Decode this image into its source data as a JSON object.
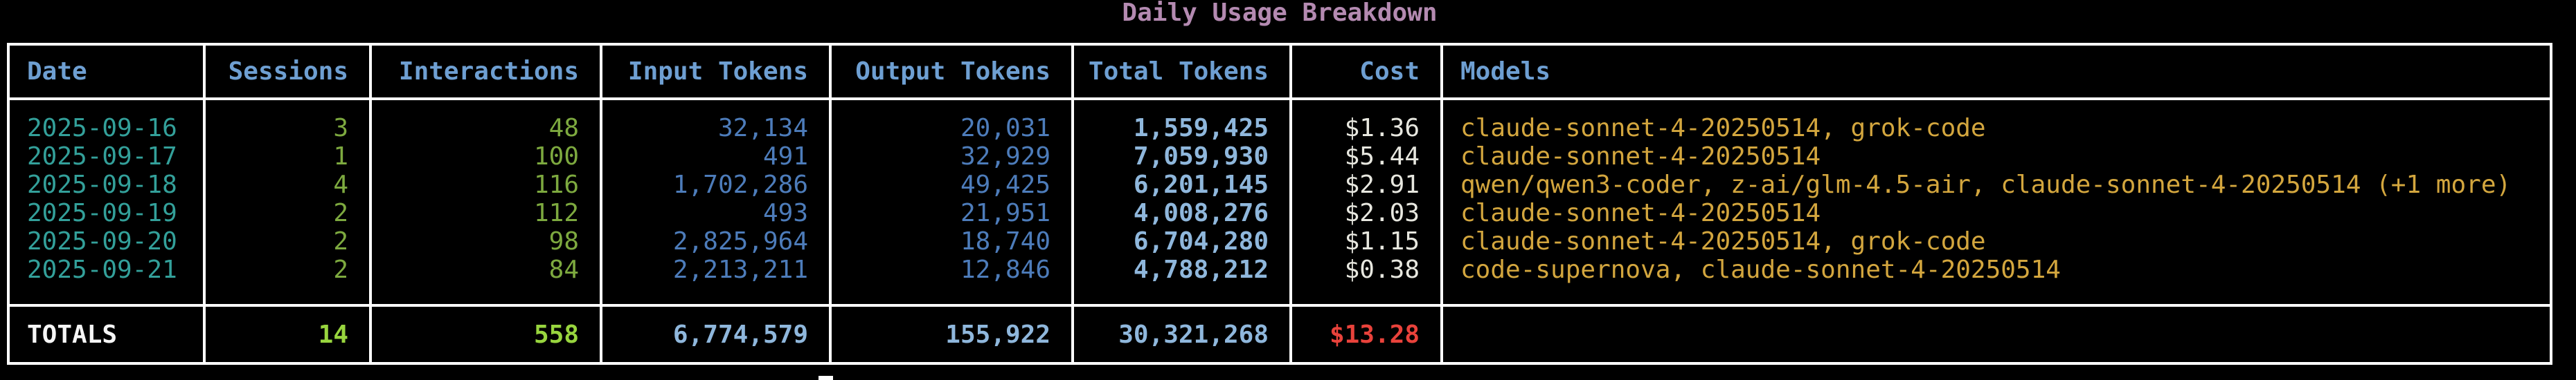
{
  "title": "Daily Usage Breakdown",
  "colors": {
    "background": "#000000",
    "border": "#ffffff",
    "title": "#b48ab1",
    "header": "#6e9fd2",
    "date": "#33a09a",
    "count_green": "#7da93f",
    "totals_green": "#98d53e",
    "token_blue": "#4d7cba",
    "total_token_blue": "#8fb7dc",
    "cost_white": "#e7e7df",
    "models_gold": "#d3a63e",
    "total_cost_red": "#e9423b",
    "totals_label": "#f5f5f5",
    "cursor": "#ffffff"
  },
  "table": {
    "columns": [
      {
        "label": "Date",
        "align": "left"
      },
      {
        "label": "Sessions",
        "align": "right"
      },
      {
        "label": "Interactions",
        "align": "right"
      },
      {
        "label": "Input Tokens",
        "align": "right"
      },
      {
        "label": "Output Tokens",
        "align": "right"
      },
      {
        "label": "Total Tokens",
        "align": "right"
      },
      {
        "label": "Cost",
        "align": "right"
      },
      {
        "label": "Models",
        "align": "left"
      }
    ],
    "rows": [
      {
        "date": "2025-09-16",
        "sessions": "3",
        "interactions": "48",
        "input_tokens": "32,134",
        "output_tokens": "20,031",
        "total_tokens": "1,559,425",
        "cost": "$1.36",
        "models": "claude-sonnet-4-20250514, grok-code"
      },
      {
        "date": "2025-09-17",
        "sessions": "1",
        "interactions": "100",
        "input_tokens": "491",
        "output_tokens": "32,929",
        "total_tokens": "7,059,930",
        "cost": "$5.44",
        "models": "claude-sonnet-4-20250514"
      },
      {
        "date": "2025-09-18",
        "sessions": "4",
        "interactions": "116",
        "input_tokens": "1,702,286",
        "output_tokens": "49,425",
        "total_tokens": "6,201,145",
        "cost": "$2.91",
        "models": "qwen/qwen3-coder, z-ai/glm-4.5-air, claude-sonnet-4-20250514 (+1 more)"
      },
      {
        "date": "2025-09-19",
        "sessions": "2",
        "interactions": "112",
        "input_tokens": "493",
        "output_tokens": "21,951",
        "total_tokens": "4,008,276",
        "cost": "$2.03",
        "models": "claude-sonnet-4-20250514"
      },
      {
        "date": "2025-09-20",
        "sessions": "2",
        "interactions": "98",
        "input_tokens": "2,825,964",
        "output_tokens": "18,740",
        "total_tokens": "6,704,280",
        "cost": "$1.15",
        "models": "claude-sonnet-4-20250514, grok-code"
      },
      {
        "date": "2025-09-21",
        "sessions": "2",
        "interactions": "84",
        "input_tokens": "2,213,211",
        "output_tokens": "12,846",
        "total_tokens": "4,788,212",
        "cost": "$0.38",
        "models": "code-supernova, claude-sonnet-4-20250514"
      }
    ],
    "totals": {
      "label": "TOTALS",
      "sessions": "14",
      "interactions": "558",
      "input_tokens": "6,774,579",
      "output_tokens": "155,922",
      "total_tokens": "30,321,268",
      "cost": "$13.28",
      "models": ""
    }
  }
}
